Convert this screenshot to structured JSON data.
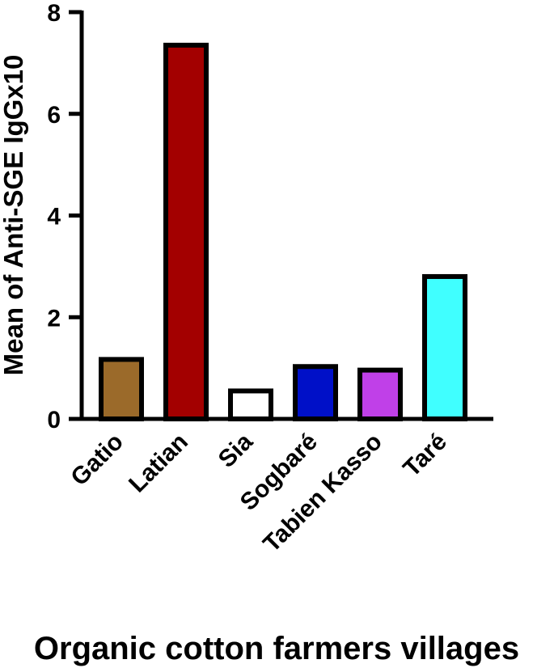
{
  "chart_data": {
    "type": "bar",
    "categories": [
      "Gatio",
      "Latian",
      "Sia",
      "Sogbaré",
      "Tabien Kasso",
      "Taré"
    ],
    "values": [
      1.17,
      7.35,
      0.55,
      1.03,
      0.96,
      2.8
    ],
    "colors": [
      "#9b6a2a",
      "#a30000",
      "#ffffff",
      "#0010c8",
      "#c040e8",
      "#40ffff"
    ],
    "title": "",
    "xlabel": "Organic cotton farmers villages",
    "ylabel": "Mean of Anti-SGE IgGx10",
    "ylim": [
      0,
      8
    ],
    "yticks": [
      0,
      2,
      4,
      6,
      8
    ],
    "grid": false,
    "legend": "none"
  }
}
